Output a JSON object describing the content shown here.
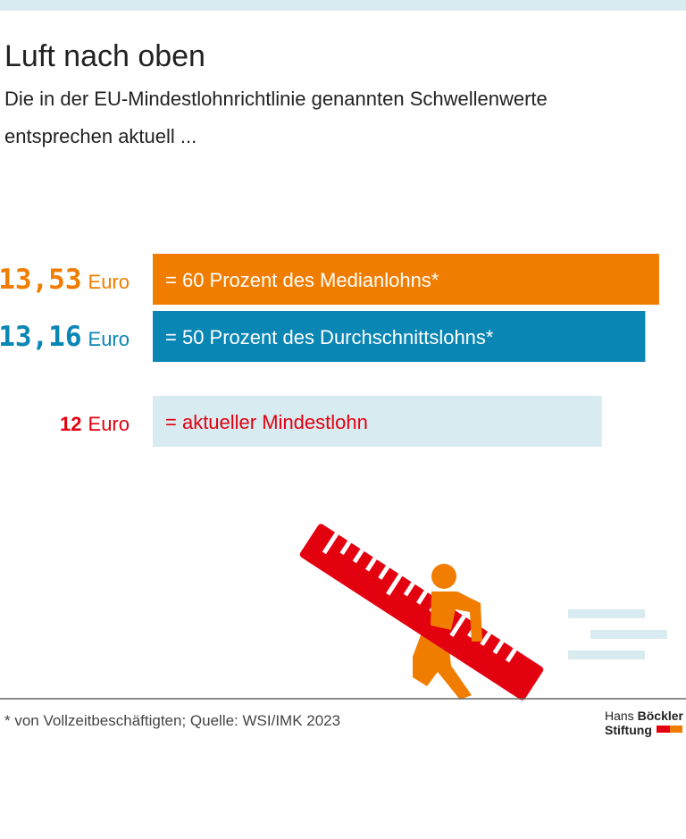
{
  "chart_data": {
    "type": "bar",
    "title": "Luft nach oben",
    "subtitle": [
      "Die in der EU-Mindestlohnrichtlinie genannten Schwellenwerte",
      "entsprechen aktuell ..."
    ],
    "categories": [
      "= 60 Prozent des Medianlohns*",
      "= 50 Prozent des Durchschnittslohns*",
      "= aktueller Mindestlohn"
    ],
    "values": [
      13.53,
      13.16,
      12
    ],
    "value_labels": [
      "13,53",
      "13,16",
      "12"
    ],
    "unit": "Euro",
    "colors": [
      "#f07d00",
      "#0a86b5",
      "#d8ebf1"
    ],
    "label_colors": [
      "#f07d00",
      "#0a86b5",
      "#e3000f"
    ],
    "text_colors": [
      "#ffffff",
      "#ffffff",
      "#e3000f"
    ],
    "footnote": "*  von Vollzeitbeschäftigten; Quelle: WSI/IMK 2023",
    "logo": [
      "Hans",
      "Böckler",
      "Stiftung"
    ]
  }
}
